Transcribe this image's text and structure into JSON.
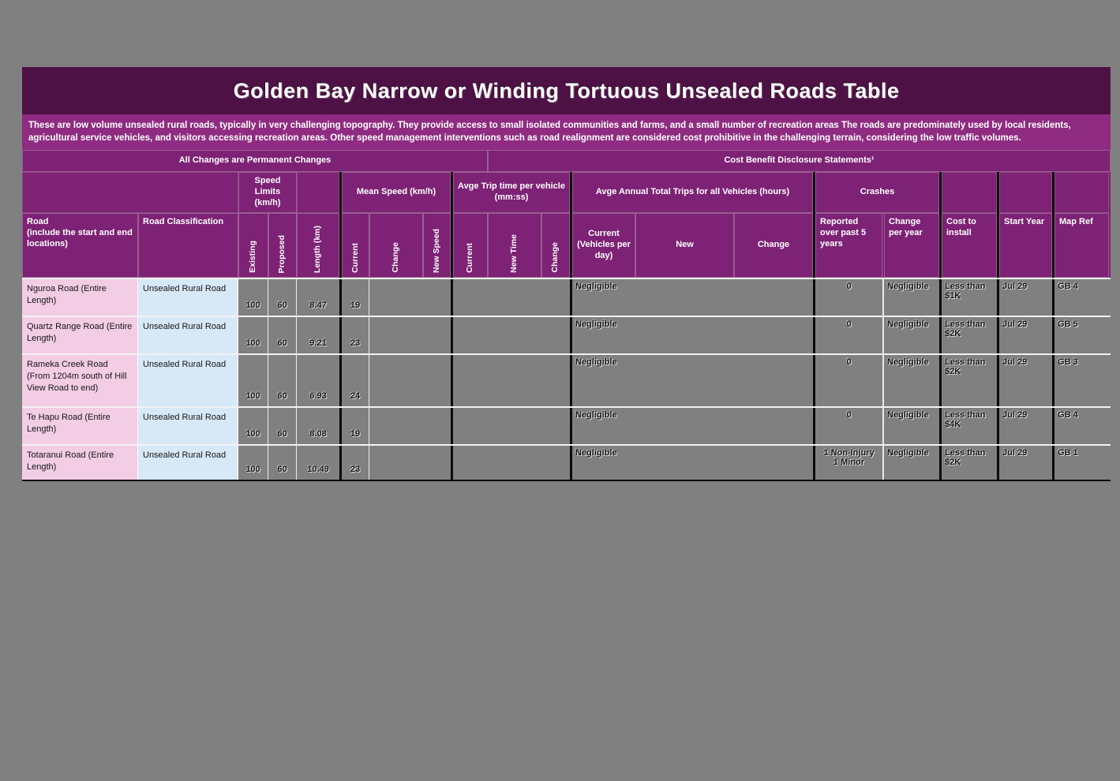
{
  "title": "Golden Bay Narrow or Winding Tortuous Unsealed Roads Table",
  "description": "These are low volume unsealed rural roads, typically in very challenging topography.  They provide access to small isolated communities and farms, and a small number of recreation areas The roads are predominately used by local residents, agricultural service vehicles, and visitors accessing recreation areas. Other speed management interventions such as road realignment are considered cost prohibitive in the challenging terrain, considering the low traffic volumes.",
  "sections": {
    "left": "All Changes are Permanent Changes",
    "right": "Cost Benefit Disclosure Statements¹"
  },
  "groups": {
    "speed_limits": "Speed Limits (km/h)",
    "mean_speed": "Mean Speed (km/h)",
    "trip_time": "Avge Trip time per vehicle (mm:ss)",
    "total_trips": "Avge Annual Total Trips for all Vehicles (hours)",
    "crashes": "Crashes"
  },
  "columns": {
    "road": "Road\n(include the start and end locations)",
    "classification": "Road Classification",
    "existing": "Existing",
    "proposed": "Proposed",
    "length": "Length (km)",
    "ms_current": "Current",
    "ms_change": "Change",
    "ms_new_speed": "New Speed",
    "tt_current": "Current",
    "tt_new_time": "New Time",
    "tt_change": "Change",
    "trips_current": "Current (Vehicles per day)",
    "trips_new": "New",
    "trips_change": "Change",
    "crashes_reported": "Reported over past 5 years",
    "crashes_change_year": "Change per year",
    "cost": "Cost to install",
    "start_year": "Start Year",
    "map_ref": "Map Ref"
  },
  "colors": {
    "title_bg": "#4e1145",
    "description_bg": "#8f2c81",
    "header_bg": "#7d2274",
    "road_name_bg": "#f2cde3",
    "classification_bg": "#d7e9f7",
    "data_bg": "#808080",
    "separator": "#0b0b0b"
  },
  "rows": [
    {
      "name": "Nguroa Road (Entire Length)",
      "classification": "Unsealed Rural Road",
      "existing": "100",
      "proposed": "60",
      "length_km": "8.47",
      "mean_speed_current": "19",
      "trips_current": "Negligible",
      "crashes_reported": "0",
      "crashes_change_per_year": "Negligible",
      "cost_to_install": "Less than $1K",
      "start_year": "Jul 29",
      "map_ref": "GB 4"
    },
    {
      "name": "Quartz Range Road (Entire Length)",
      "classification": "Unsealed Rural Road",
      "existing": "100",
      "proposed": "60",
      "length_km": "9.21",
      "mean_speed_current": "23",
      "trips_current": "Negligible",
      "crashes_reported": "0",
      "crashes_change_per_year": "Negligible",
      "cost_to_install": "Less than $2K",
      "start_year": "Jul 29",
      "map_ref": "GB 5"
    },
    {
      "name": "Rameka Creek Road (From 1204m south of Hill View Road to end)",
      "classification": "Unsealed Rural Road",
      "existing": "100",
      "proposed": "60",
      "length_km": "6.93",
      "mean_speed_current": "24",
      "trips_current": "Negligible",
      "crashes_reported": "0",
      "crashes_change_per_year": "Negligible",
      "cost_to_install": "Less than $2K",
      "start_year": "Jul 29",
      "map_ref": "GB 3"
    },
    {
      "name": "Te Hapu Road (Entire Length)",
      "classification": "Unsealed Rural Road",
      "existing": "100",
      "proposed": "60",
      "length_km": "8.08",
      "mean_speed_current": "19",
      "trips_current": "Negligible",
      "crashes_reported": "0",
      "crashes_change_per_year": "Negligible",
      "cost_to_install": "Less than $4K",
      "start_year": "Jul 29",
      "map_ref": "GB 4"
    },
    {
      "name": "Totaranui Road (Entire Length)",
      "classification": "Unsealed Rural Road",
      "existing": "100",
      "proposed": "60",
      "length_km": "10.49",
      "mean_speed_current": "23",
      "trips_current": "Negligible",
      "crashes_reported": "1 Non-Injury\n1 Minor",
      "crashes_change_per_year": "Negligible",
      "cost_to_install": "Less than $2K",
      "start_year": "Jul 29",
      "map_ref": "GB 1"
    }
  ]
}
